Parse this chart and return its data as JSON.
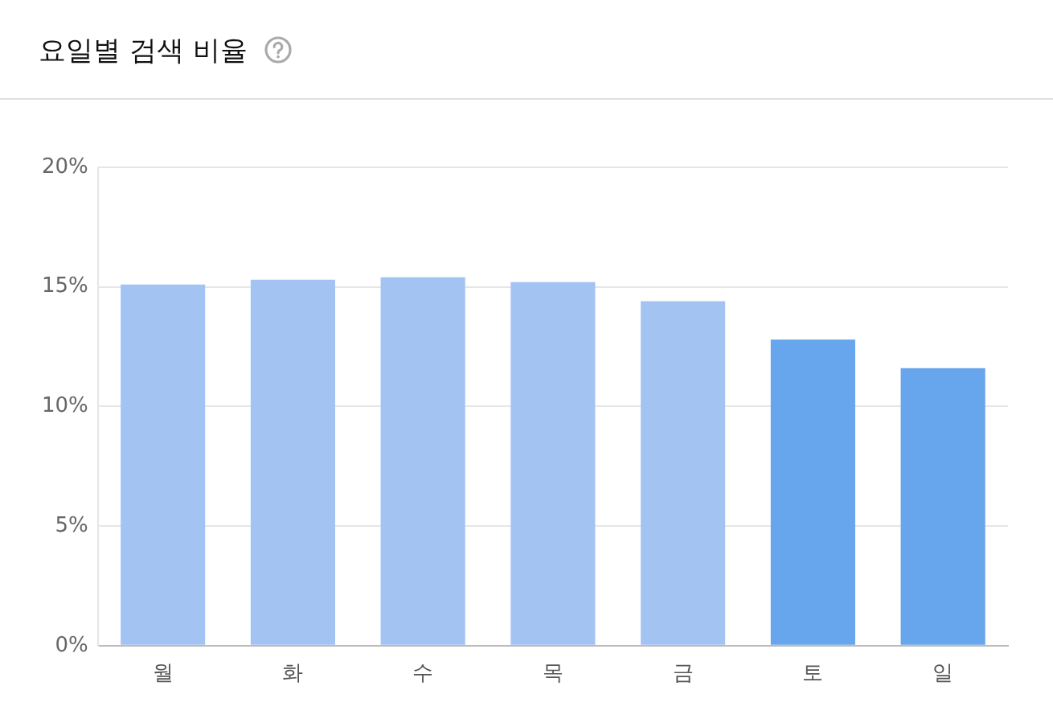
{
  "chart_data": {
    "type": "bar",
    "title": "요일별 검색 비율",
    "categories": [
      "월",
      "화",
      "수",
      "목",
      "금",
      "토",
      "일"
    ],
    "values": [
      15.1,
      15.3,
      15.4,
      15.2,
      14.4,
      12.8,
      11.6
    ],
    "colors": [
      "#a3c4f3",
      "#a3c4f3",
      "#a3c4f3",
      "#a3c4f3",
      "#a3c4f3",
      "#67a5ec",
      "#67a5ec"
    ],
    "ylim": [
      0,
      20
    ],
    "yticks": [
      {
        "value": 0,
        "label": "0%"
      },
      {
        "value": 5,
        "label": "5%"
      },
      {
        "value": 10,
        "label": "10%"
      },
      {
        "value": 15,
        "label": "15%"
      },
      {
        "value": 20,
        "label": "20%"
      }
    ],
    "grid": "y",
    "legend": false
  }
}
